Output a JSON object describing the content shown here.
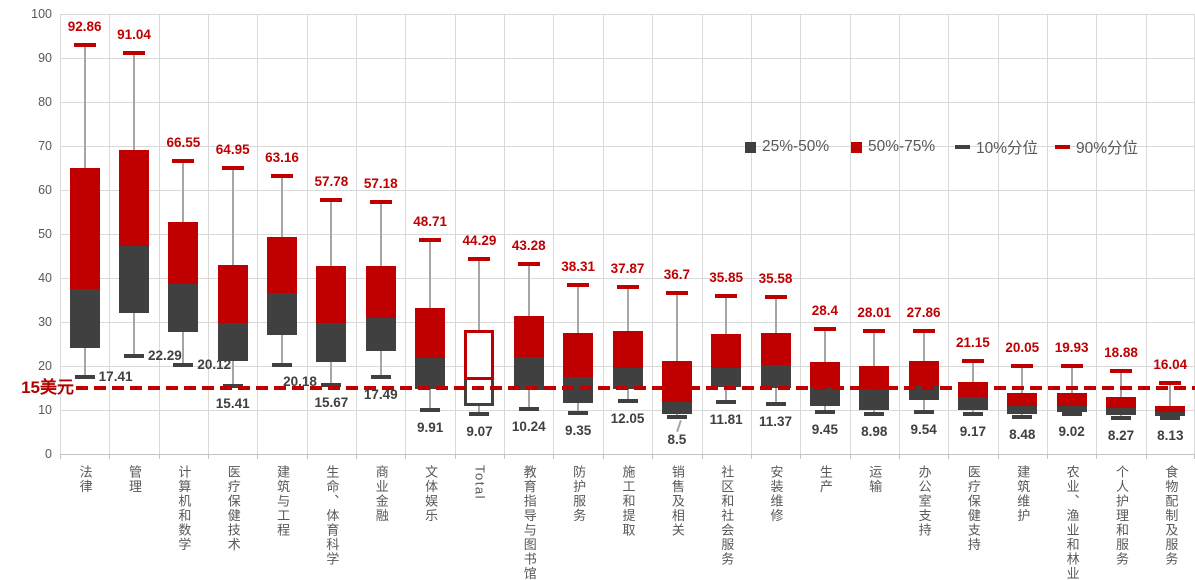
{
  "reference_line": {
    "value": 15,
    "label": "15美元",
    "color": "#c00000"
  },
  "legend": {
    "items": [
      {
        "marker": "box",
        "color": "#404040",
        "label": "25%-50%"
      },
      {
        "marker": "box",
        "color": "#c00000",
        "label": "50%-75%"
      },
      {
        "marker": "dash",
        "color": "#404040",
        "label": "10%分位"
      },
      {
        "marker": "dash",
        "color": "#c00000",
        "label": "90%分位"
      }
    ]
  },
  "chart_data": {
    "type": "box-whisker",
    "title": "",
    "xlabel": "",
    "ylabel": "",
    "ylim": [
      0,
      100
    ],
    "ytick_step": 10,
    "yticks": [
      0,
      10,
      20,
      30,
      40,
      50,
      60,
      70,
      80,
      90,
      100
    ],
    "grid": true,
    "legend_position": "upper-right-inside",
    "series_meaning": {
      "lower_box": "25%-50% (wage percentile band)",
      "upper_box": "50%-75% (wage percentile band)",
      "low_cap": "10%分位",
      "high_cap": "90%分位"
    },
    "colors": {
      "box_lower": "#404040",
      "box_upper": "#c00000",
      "whisker_stem": "#a6a6a6",
      "cap_p10": "#404040",
      "cap_p90": "#c00000",
      "gridline": "#d9d9d9",
      "axis_text": "#595959",
      "label_p90": "#c00000",
      "label_p10": "#404040",
      "reference": "#c00000"
    },
    "categories": [
      {
        "name": "法律",
        "p10": 17.41,
        "p25": 24.1,
        "p50": 37.5,
        "p75": 65.0,
        "p90": 92.86,
        "p10_label_side": "right"
      },
      {
        "name": "管理",
        "p10": 22.29,
        "p25": 32.1,
        "p50": 47.3,
        "p75": 69.1,
        "p90": 91.04,
        "p10_label_side": "right"
      },
      {
        "name": "计算机和数学",
        "p10": 20.12,
        "p25": 27.8,
        "p50": 38.6,
        "p75": 52.7,
        "p90": 66.55,
        "p10_label_side": "right"
      },
      {
        "name": "医疗保健技术",
        "p10": 15.41,
        "p25": 21.2,
        "p50": 29.8,
        "p75": 43.0,
        "p90": 64.95
      },
      {
        "name": "建筑与工程",
        "p10": 20.18,
        "p25": 27.0,
        "p50": 36.7,
        "p75": 49.3,
        "p90": 63.16,
        "p10_label_side": "below-right"
      },
      {
        "name": "生命、体育科学",
        "p10": 15.67,
        "p25": 20.8,
        "p50": 29.7,
        "p75": 42.7,
        "p90": 57.78
      },
      {
        "name": "商业金融",
        "p10": 17.49,
        "p25": 23.3,
        "p50": 31.0,
        "p75": 42.7,
        "p90": 57.18
      },
      {
        "name": "文体娱乐",
        "p10": 9.91,
        "p25": 14.8,
        "p50": 21.8,
        "p75": 33.2,
        "p90": 48.71
      },
      {
        "name": "Total",
        "p10": 9.07,
        "p25": 11.0,
        "p50": 16.8,
        "p75": 28.2,
        "p90": 44.29,
        "hollow": true
      },
      {
        "name": "教育指导与图书馆",
        "p10": 10.24,
        "p25": 14.5,
        "p50": 22.1,
        "p75": 31.4,
        "p90": 43.28
      },
      {
        "name": "防护服务",
        "p10": 9.35,
        "p25": 11.5,
        "p50": 17.6,
        "p75": 27.6,
        "p90": 38.31
      },
      {
        "name": "施工和提取",
        "p10": 12.05,
        "p25": 14.7,
        "p50": 19.6,
        "p75": 28.0,
        "p90": 37.87
      },
      {
        "name": "销售及相关",
        "p10": 8.5,
        "p25": 9.2,
        "p50": 11.9,
        "p75": 21.1,
        "p90": 36.7,
        "p10_label_leader": true
      },
      {
        "name": "社区和社会服务",
        "p10": 11.81,
        "p25": 15.2,
        "p50": 19.5,
        "p75": 27.3,
        "p90": 35.85
      },
      {
        "name": "安装维修",
        "p10": 11.37,
        "p25": 14.9,
        "p50": 20.2,
        "p75": 27.4,
        "p90": 35.58
      },
      {
        "name": "生产",
        "p10": 9.45,
        "p25": 10.9,
        "p50": 15.2,
        "p75": 21.0,
        "p90": 28.4
      },
      {
        "name": "运输",
        "p10": 8.98,
        "p25": 10.0,
        "p50": 14.7,
        "p75": 20.0,
        "p90": 28.01
      },
      {
        "name": "办公室支持",
        "p10": 9.54,
        "p25": 12.3,
        "p50": 15.5,
        "p75": 21.1,
        "p90": 27.86
      },
      {
        "name": "医疗保健支持",
        "p10": 9.17,
        "p25": 10.0,
        "p50": 13.0,
        "p75": 16.4,
        "p90": 21.15
      },
      {
        "name": "建筑维护",
        "p10": 8.48,
        "p25": 9.1,
        "p50": 10.9,
        "p75": 13.9,
        "p90": 20.05
      },
      {
        "name": "农业、渔业和林业",
        "p10": 9.02,
        "p25": 9.5,
        "p50": 10.8,
        "p75": 13.9,
        "p90": 19.93
      },
      {
        "name": "个人护理和服务",
        "p10": 8.27,
        "p25": 8.8,
        "p50": 10.4,
        "p75": 13.0,
        "p90": 18.88
      },
      {
        "name": "食物配制及服务",
        "p10": 8.13,
        "p25": 8.6,
        "p50": 9.5,
        "p75": 11.0,
        "p90": 16.04
      }
    ]
  }
}
